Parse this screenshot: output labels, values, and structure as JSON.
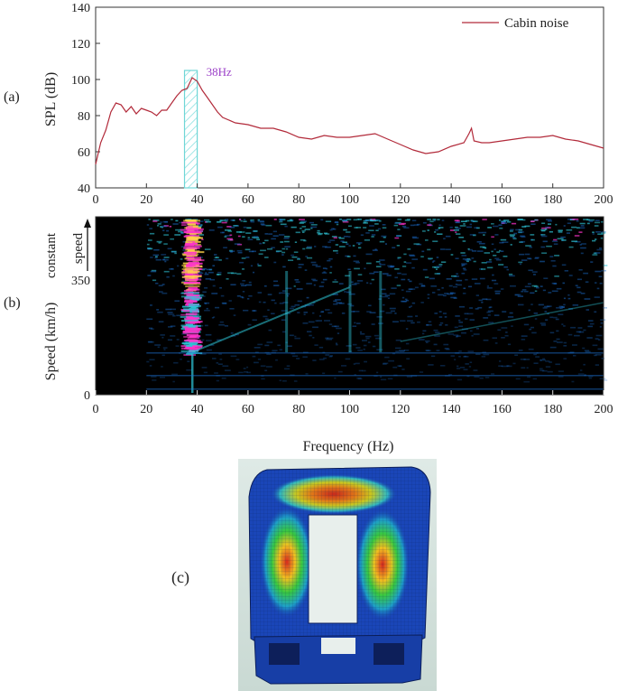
{
  "figure": {
    "panel_a_label": "(a)",
    "panel_b_label": "(b)",
    "panel_c_label": "(c)",
    "xlabel": "Frequency (Hz)"
  },
  "chart_data": [
    {
      "type": "line",
      "panel": "(a)",
      "ylabel": "SPL (dB)",
      "xlim": [
        0,
        200
      ],
      "ylim": [
        40,
        140
      ],
      "xticks": [
        "0",
        "20",
        "40",
        "60",
        "80",
        "100",
        "120",
        "140",
        "160",
        "180",
        "200"
      ],
      "yticks": [
        "40",
        "60",
        "80",
        "100",
        "120",
        "140"
      ],
      "legend": {
        "position": "top-right",
        "entries": [
          "Cabin noise"
        ]
      },
      "annotation": {
        "text": "38Hz",
        "x": 38,
        "highlight_range": [
          35,
          40
        ],
        "color": "#9b3fc8"
      },
      "colors": {
        "line": "#b22a3a",
        "highlight": "#6fd6d6"
      },
      "series": [
        {
          "name": "Cabin noise",
          "x": [
            0,
            2,
            4,
            6,
            8,
            10,
            12,
            14,
            16,
            18,
            20,
            22,
            24,
            26,
            28,
            30,
            32,
            34,
            36,
            38,
            40,
            42,
            44,
            46,
            48,
            50,
            55,
            60,
            65,
            70,
            75,
            80,
            85,
            90,
            95,
            100,
            105,
            110,
            115,
            120,
            125,
            130,
            135,
            140,
            145,
            147,
            148,
            149,
            152,
            155,
            160,
            165,
            170,
            175,
            180,
            185,
            190,
            195,
            200
          ],
          "y": [
            53,
            65,
            72,
            82,
            87,
            86,
            82,
            85,
            81,
            84,
            83,
            82,
            80,
            83,
            83,
            87,
            91,
            94,
            95,
            101,
            99,
            94,
            90,
            86,
            82,
            79,
            76,
            75,
            73,
            73,
            71,
            68,
            67,
            69,
            68,
            68,
            69,
            70,
            67,
            64,
            61,
            59,
            60,
            63,
            65,
            70,
            73,
            66,
            65,
            65,
            66,
            67,
            68,
            68,
            69,
            67,
            66,
            64,
            62
          ]
        }
      ]
    },
    {
      "type": "heatmap",
      "panel": "(b)",
      "ylabel": "Speed (km/h)",
      "xlim": [
        0,
        200
      ],
      "ylim": [
        0,
        350
      ],
      "xticks": [
        "0",
        "20",
        "40",
        "60",
        "80",
        "100",
        "120",
        "140",
        "160",
        "180",
        "200"
      ],
      "yticks": [
        "0",
        "350"
      ],
      "region_label": "constant speed",
      "hot_frequency": 38,
      "colors": {
        "background": "#000000",
        "low": "#1b6fd0",
        "mid": "#2ec6d8",
        "high": "#ff33cc",
        "peak": "#ffd24a"
      }
    }
  ]
}
